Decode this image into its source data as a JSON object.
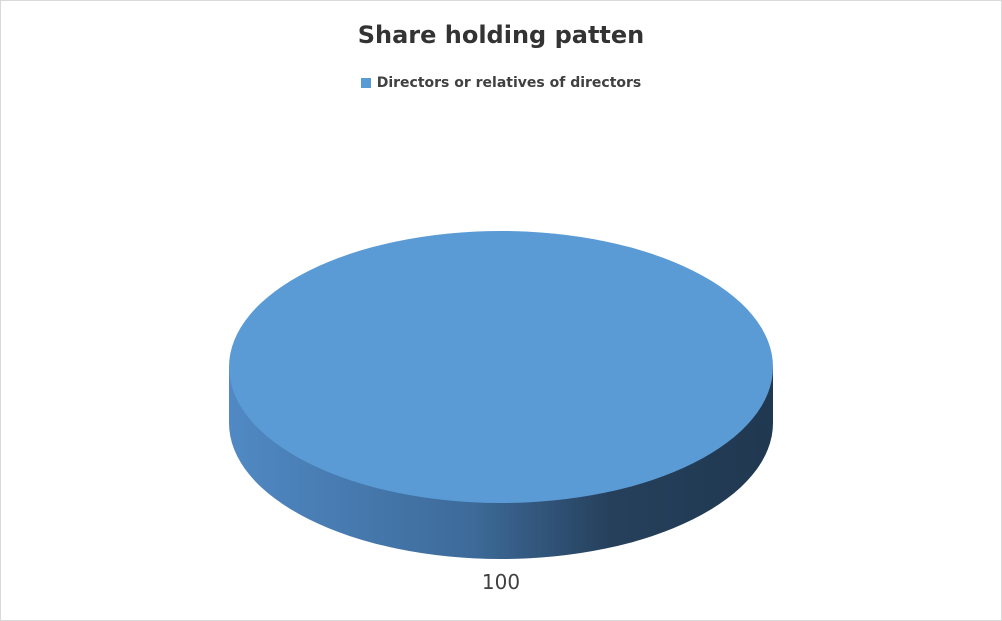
{
  "chart_data": {
    "type": "pie",
    "style": "3d",
    "title": "Share holding patten",
    "categories": [
      "Directors or relatives of directors"
    ],
    "values": [
      100
    ],
    "data_labels": [
      "100"
    ],
    "legend_position": "top",
    "colors": [
      "#5b9bd5"
    ]
  }
}
